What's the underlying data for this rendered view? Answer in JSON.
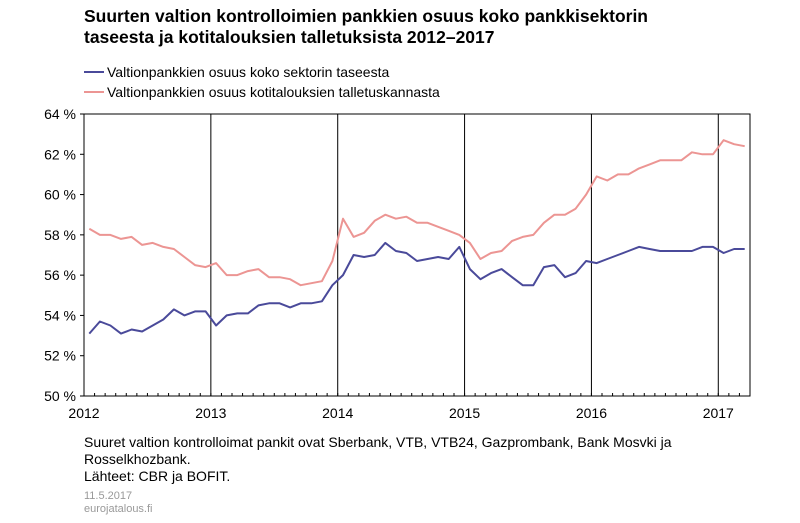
{
  "title_line1": "Suurten valtion kontrolloimien pankkien osuus koko pankkisektorin",
  "title_line2": "taseesta ja kotitalouksien talletuksista 2012–2017",
  "notes": {
    "line1": "Suuret valtion kontrolloimat pankit ovat Sberbank, VTB, VTB24, Gazprombank, Bank Mosvki ja",
    "line2": "Rosselkhozbank.",
    "line3": "Lähteet: CBR ja BOFIT."
  },
  "footer": {
    "date": "11.5.2017",
    "site": "eurojatalous.fi"
  },
  "chart_data": {
    "type": "line",
    "title": "Suurten valtion kontrolloimien pankkien osuus koko pankkisektorin taseesta ja kotitalouksien talletuksista 2012–2017",
    "x_start": "2012-01",
    "x_step": "monthly",
    "x_tick_labels": [
      "2012",
      "2013",
      "2014",
      "2015",
      "2016",
      "2017"
    ],
    "y_tick_labels": [
      "50 %",
      "52 %",
      "54 %",
      "56 %",
      "58 %",
      "60 %",
      "62 %",
      "64 %"
    ],
    "ylim": [
      50,
      64
    ],
    "y_unit": "%",
    "grid": "vertical lines at year boundaries",
    "legend_position": "top-left",
    "series": [
      {
        "name": "Valtionpankkien osuus koko sektorin taseesta",
        "color": "#4a4a9a",
        "values": [
          53.1,
          53.7,
          53.5,
          53.1,
          53.3,
          53.2,
          53.5,
          53.8,
          54.3,
          54.0,
          54.2,
          54.2,
          53.5,
          54.0,
          54.1,
          54.1,
          54.5,
          54.6,
          54.6,
          54.4,
          54.6,
          54.6,
          54.7,
          55.5,
          56.0,
          57.0,
          56.9,
          57.0,
          57.6,
          57.2,
          57.1,
          56.7,
          56.8,
          56.9,
          56.8,
          57.4,
          56.3,
          55.8,
          56.1,
          56.3,
          55.9,
          55.5,
          55.5,
          56.4,
          56.5,
          55.9,
          56.1,
          56.7,
          56.6,
          56.8,
          57.0,
          57.2,
          57.4,
          57.3,
          57.2,
          57.2,
          57.2,
          57.2,
          57.4,
          57.4,
          57.1,
          57.3,
          57.3
        ]
      },
      {
        "name": "Valtionpankkien osuus kotitalouksien talletuskannasta",
        "color": "#ec9593",
        "values": [
          58.3,
          58.0,
          58.0,
          57.8,
          57.9,
          57.5,
          57.6,
          57.4,
          57.3,
          56.9,
          56.5,
          56.4,
          56.6,
          56.0,
          56.0,
          56.2,
          56.3,
          55.9,
          55.9,
          55.8,
          55.5,
          55.6,
          55.7,
          56.7,
          58.8,
          57.9,
          58.1,
          58.7,
          59.0,
          58.8,
          58.9,
          58.6,
          58.6,
          58.4,
          58.2,
          58.0,
          57.6,
          56.8,
          57.1,
          57.2,
          57.7,
          57.9,
          58.0,
          58.6,
          59.0,
          59.0,
          59.3,
          60.0,
          60.9,
          60.7,
          61.0,
          61.0,
          61.3,
          61.5,
          61.7,
          61.7,
          61.7,
          62.1,
          62.0,
          62.0,
          62.7,
          62.5,
          62.4
        ]
      }
    ]
  }
}
